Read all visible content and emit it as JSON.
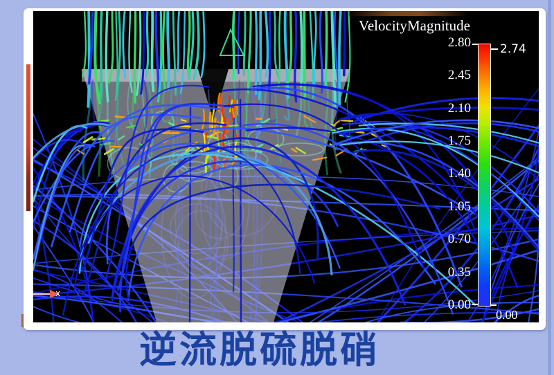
{
  "slide": {
    "background_color": "#a8b6e8",
    "caption": "逆流脱硫脱硝",
    "caption_color": "#1b429f"
  },
  "viewer": {
    "frame_color": "#ffffff",
    "canvas_color": "#000000",
    "left_stripe_color": "#cc4130"
  },
  "legend": {
    "title": "VelocityMagnitude",
    "tick_labels": [
      "2.80",
      "2.45",
      "2.10",
      "1.75",
      "1.40",
      "1.05",
      "0.70",
      "0.35",
      "0.00"
    ],
    "max_marker_label": "2.74",
    "min_marker_label": "0.00"
  },
  "axis_triad": {
    "x_label": "x",
    "arrow_color": "#e8604e"
  },
  "chart_data": {
    "type": "streamline",
    "title": "VelocityMagnitude",
    "caption": "逆流脱硫脱硝",
    "colorbar": {
      "label": "VelocityMagnitude",
      "orientation": "vertical",
      "position": "right",
      "range": [
        0.0,
        2.8
      ],
      "ticks": [
        2.8,
        2.45,
        2.1,
        1.75,
        1.4,
        1.05,
        0.7,
        0.35,
        0.0
      ],
      "tick_labels": [
        "2.80",
        "2.45",
        "2.10",
        "1.75",
        "1.40",
        "1.05",
        "0.70",
        "0.35",
        "0.00"
      ],
      "data_max_annotation": 2.74,
      "data_min_annotation": 0.0,
      "colormap": "rainbow (red high at top to blue low at bottom)"
    },
    "axes_marker": {
      "x_label": "x"
    },
    "scene": "CFD streamlines colored by velocity magnitude: high-speed green/cyan jets enter downward at the top into a translucent inverted-cone hopper, turn in a yellow/orange high-shear band, and recirculate outward and downward as low-velocity blue looping lines on a black background"
  }
}
